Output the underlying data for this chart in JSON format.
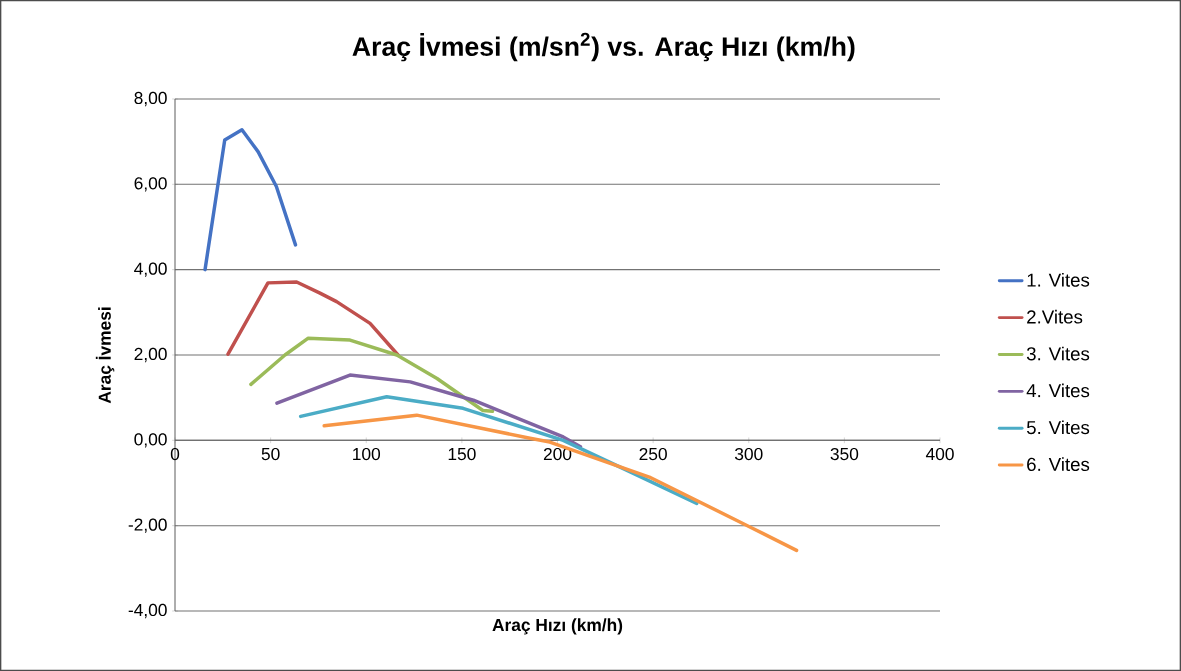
{
  "chart_data": {
    "type": "line",
    "title": "Araç İvmesi (m/sn$^{2}$) vs. Araç Hızı (km/h)",
    "xlabel": "Araç Hızı (km/h)",
    "ylabel": "Araç İvmesi",
    "xlim": [
      0,
      400
    ],
    "ylim": [
      -4,
      8
    ],
    "xticks": [
      0,
      50,
      100,
      150,
      200,
      250,
      300,
      350,
      400
    ],
    "yticks": [
      {
        "value": -4,
        "label": "-4,00"
      },
      {
        "value": -2,
        "label": "-2,00"
      },
      {
        "value": 0,
        "label": "0,00"
      },
      {
        "value": 2,
        "label": "2,00"
      },
      {
        "value": 4,
        "label": "4,00"
      },
      {
        "value": 6,
        "label": "6,00"
      },
      {
        "value": 8,
        "label": "8,00"
      }
    ],
    "grid": "y",
    "legend": "right",
    "line_style": "solid",
    "series": [
      {
        "name": "1. Vites",
        "color": "#4472c4",
        "x": [
          15.7,
          26,
          35,
          43.5,
          53,
          63
        ],
        "values": [
          4.0,
          7.04,
          7.28,
          6.76,
          5.95,
          4.58
        ]
      },
      {
        "name": "2.Vites",
        "color": "#c0504d",
        "x": [
          27.7,
          48.6,
          63.6,
          75.8,
          84.5,
          102,
          116.6
        ],
        "values": [
          2.02,
          3.69,
          3.71,
          3.45,
          3.25,
          2.74,
          2.0
        ]
      },
      {
        "name": "3. Vites",
        "color": "#9bbb59",
        "x": [
          39.7,
          57.5,
          69.5,
          91.5,
          116,
          137,
          161,
          166
        ],
        "values": [
          1.31,
          2.0,
          2.39,
          2.35,
          2.0,
          1.45,
          0.7,
          0.68
        ]
      },
      {
        "name": "4. Vites",
        "color": "#8064a2",
        "x": [
          53.3,
          91.5,
          123,
          156,
          203,
          212
        ],
        "values": [
          0.87,
          1.53,
          1.37,
          0.94,
          0.08,
          -0.15
        ]
      },
      {
        "name": "5. Vites",
        "color": "#4bacc6",
        "x": [
          65.7,
          110.7,
          150.6,
          203,
          238,
          272.8
        ],
        "values": [
          0.56,
          1.02,
          0.75,
          0.0,
          -0.74,
          -1.48
        ]
      },
      {
        "name": "6. Vites",
        "color": "#f79646",
        "x": [
          78,
          126.4,
          185.6,
          196,
          248,
          300.6,
          325
        ],
        "values": [
          0.34,
          0.59,
          0.05,
          -0.04,
          -0.86,
          -2.03,
          -2.58
        ]
      }
    ]
  }
}
